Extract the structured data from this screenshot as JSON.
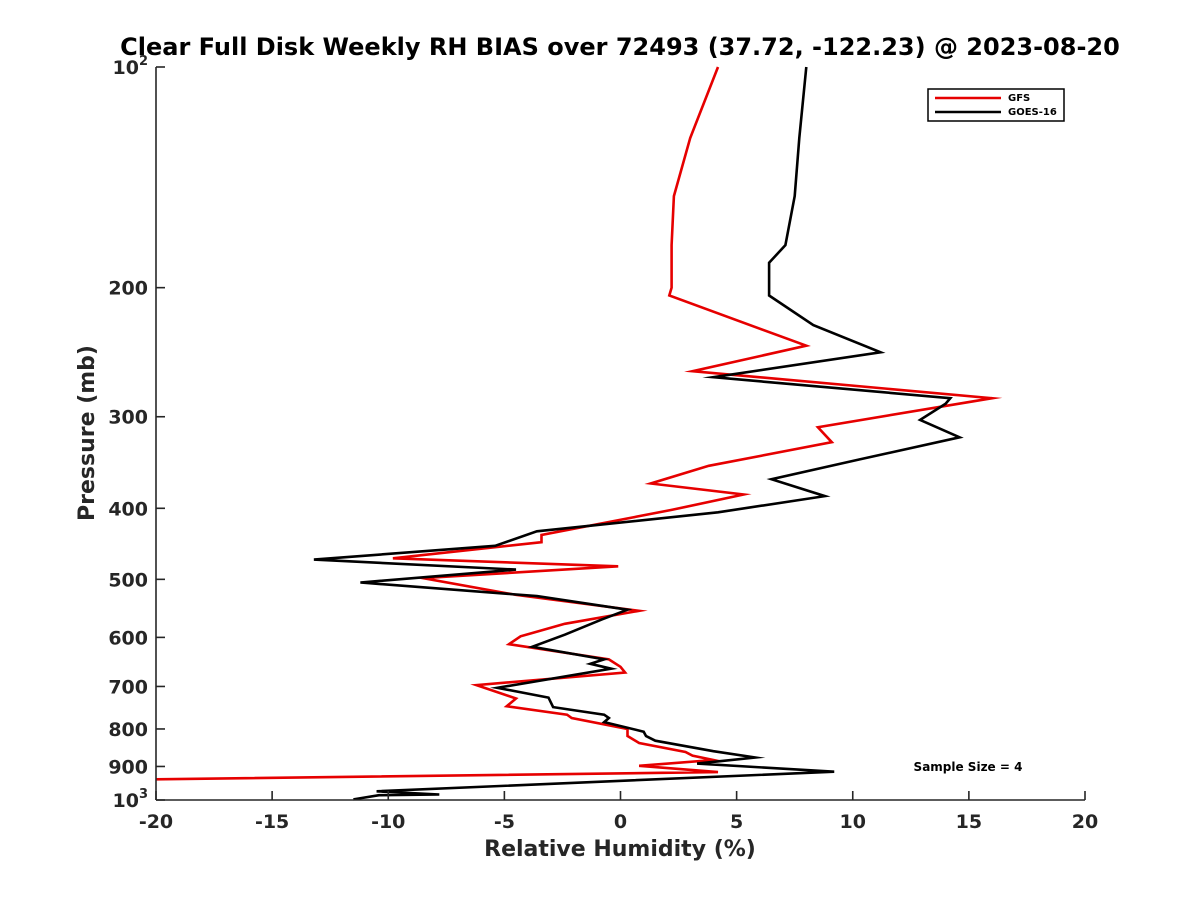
{
  "chart_data": {
    "type": "line",
    "title": "Clear Full Disk Weekly RH BIAS over 72493 (37.72, -122.23) @ 2023-08-20",
    "xlabel": "Relative Humidity (%)",
    "ylabel": "Pressure (mb)",
    "xlim": [
      -20,
      20
    ],
    "ylim": [
      100,
      1000
    ],
    "y_scale": "log",
    "y_reversed": true,
    "grid": false,
    "legend_position": "top-right",
    "x_ticks": [
      "-20",
      "-15",
      "-10",
      "-5",
      "0",
      "5",
      "10",
      "15",
      "20"
    ],
    "y_ticks": [
      {
        "base": "10",
        "exp": "2",
        "value": 100
      },
      {
        "base": "200",
        "exp": "",
        "value": 200
      },
      {
        "base": "300",
        "exp": "",
        "value": 300
      },
      {
        "base": "400",
        "exp": "",
        "value": 400
      },
      {
        "base": "500",
        "exp": "",
        "value": 500
      },
      {
        "base": "600",
        "exp": "",
        "value": 600
      },
      {
        "base": "700",
        "exp": "",
        "value": 700
      },
      {
        "base": "800",
        "exp": "",
        "value": 800
      },
      {
        "base": "900",
        "exp": "",
        "value": 900
      },
      {
        "base": "10",
        "exp": "3",
        "value": 1000
      }
    ],
    "annotation": "Sample Size = 4",
    "series": [
      {
        "name": "GFS",
        "color": "#e60000",
        "points": [
          [
            4.2,
            100
          ],
          [
            3.0,
            125
          ],
          [
            2.3,
            150
          ],
          [
            2.2,
            175
          ],
          [
            2.2,
            200
          ],
          [
            2.1,
            205
          ],
          [
            8.0,
            240
          ],
          [
            3.1,
            260
          ],
          [
            16.0,
            283
          ],
          [
            8.5,
            310
          ],
          [
            9.1,
            325
          ],
          [
            3.8,
            350
          ],
          [
            1.3,
            370
          ],
          [
            5.3,
            383
          ],
          [
            2.2,
            402
          ],
          [
            -3.4,
            435
          ],
          [
            -3.4,
            445
          ],
          [
            -9.8,
            468
          ],
          [
            -0.1,
            480
          ],
          [
            -8.5,
            498
          ],
          [
            -4.5,
            525
          ],
          [
            0.8,
            552
          ],
          [
            -2.4,
            575
          ],
          [
            -4.3,
            598
          ],
          [
            -4.8,
            613
          ],
          [
            -0.5,
            643
          ],
          [
            0.0,
            658
          ],
          [
            0.2,
            670
          ],
          [
            -6.2,
            697
          ],
          [
            -4.5,
            727
          ],
          [
            -4.9,
            745
          ],
          [
            -2.3,
            765
          ],
          [
            -2.1,
            773
          ],
          [
            0.3,
            800
          ],
          [
            0.3,
            818
          ],
          [
            0.8,
            836
          ],
          [
            2.8,
            860
          ],
          [
            3.1,
            870
          ],
          [
            4.0,
            882
          ],
          [
            0.8,
            898
          ],
          [
            4.2,
            916
          ],
          [
            -20.0,
            937
          ]
        ]
      },
      {
        "name": "GOES-16",
        "color": "#000000",
        "points": [
          [
            8.0,
            100
          ],
          [
            7.7,
            125
          ],
          [
            7.5,
            150
          ],
          [
            7.1,
            175
          ],
          [
            6.4,
            185
          ],
          [
            6.4,
            205
          ],
          [
            8.3,
            225
          ],
          [
            11.2,
            245
          ],
          [
            4.0,
            265
          ],
          [
            14.2,
            283
          ],
          [
            14.0,
            288
          ],
          [
            12.9,
            303
          ],
          [
            14.6,
            320
          ],
          [
            10.3,
            343
          ],
          [
            6.5,
            365
          ],
          [
            8.8,
            385
          ],
          [
            4.2,
            405
          ],
          [
            -3.6,
            430
          ],
          [
            -5.4,
            450
          ],
          [
            -13.2,
            470
          ],
          [
            -4.5,
            485
          ],
          [
            -11.2,
            505
          ],
          [
            -3.6,
            527
          ],
          [
            0.3,
            550
          ],
          [
            -0.8,
            567
          ],
          [
            -2.4,
            595
          ],
          [
            -3.8,
            618
          ],
          [
            -0.7,
            643
          ],
          [
            -1.3,
            652
          ],
          [
            -0.4,
            662
          ],
          [
            -5.3,
            703
          ],
          [
            -3.1,
            725
          ],
          [
            -2.9,
            747
          ],
          [
            -0.7,
            765
          ],
          [
            -0.5,
            773
          ],
          [
            -0.7,
            783
          ],
          [
            1.0,
            807
          ],
          [
            1.1,
            818
          ],
          [
            1.5,
            830
          ],
          [
            4.0,
            858
          ],
          [
            5.8,
            875
          ],
          [
            3.3,
            892
          ],
          [
            9.2,
            915
          ],
          [
            -10.5,
            973
          ],
          [
            -7.8,
            983
          ],
          [
            -10.4,
            985
          ],
          [
            -11.5,
            998
          ]
        ]
      }
    ]
  }
}
